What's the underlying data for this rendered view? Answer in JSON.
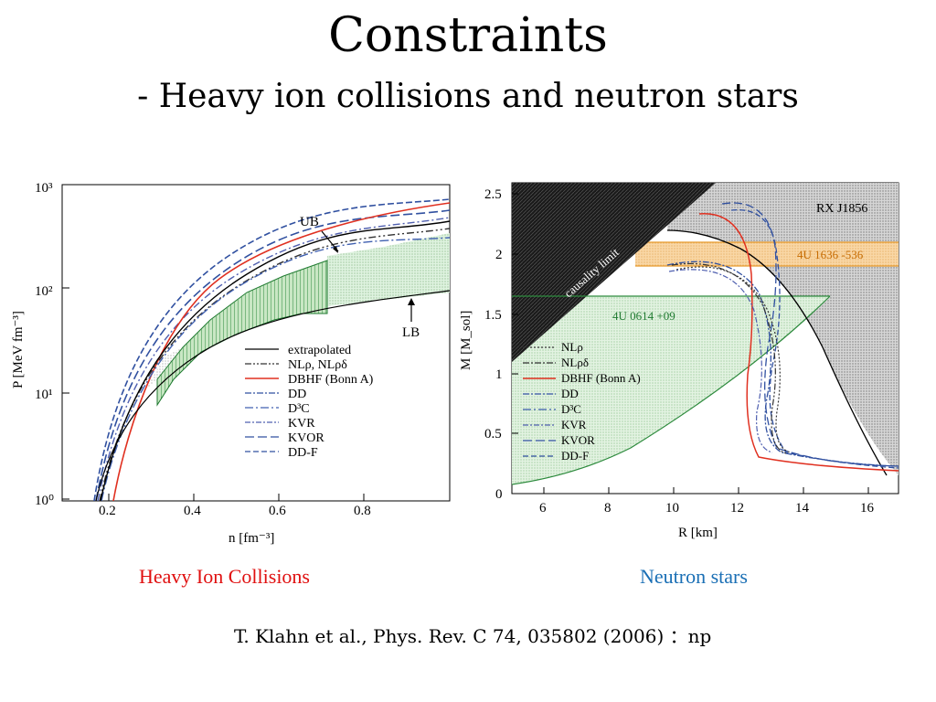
{
  "slide": {
    "title": "Constraints",
    "subtitle": "- Heavy ion collisions and neutron stars",
    "citation": "T. Klahn et al., Phys. Rev. C 74, 035802 (2006) ：np"
  },
  "captions": {
    "left": "Heavy Ion Collisions",
    "left_color": "#e01010",
    "right": "Neutron stars",
    "right_color": "#1a6fb5"
  },
  "chart_data": [
    {
      "type": "line",
      "xlabel": "n [fm⁻³]",
      "ylabel": "P [MeV fm⁻³]",
      "xlim": [
        0.1,
        1.0
      ],
      "ylim": [
        1,
        1000
      ],
      "yscale": "log",
      "x_ticks": [
        "0.2",
        "0.4",
        "0.6",
        "0.8"
      ],
      "y_ticks": [
        "10⁰",
        "10¹",
        "10²",
        "10³"
      ],
      "annotations": [
        "UB",
        "LB"
      ],
      "legend": [
        "extrapolated",
        "NLρ, NLρδ",
        "DBHF (Bonn A)",
        "DD",
        "D³C",
        "KVR",
        "KVOR",
        "DD-F"
      ],
      "series": [
        {
          "name": "DBHF (Bonn A)",
          "color": "#e03020",
          "x": [
            0.2,
            0.3,
            0.4,
            0.5,
            0.6,
            0.7,
            0.8,
            0.9,
            0.98
          ],
          "y": [
            1.2,
            8,
            30,
            80,
            160,
            280,
            400,
            520,
            650
          ]
        },
        {
          "name": "DD",
          "color": "#3050a0",
          "x": [
            0.17,
            0.25,
            0.35,
            0.45,
            0.55,
            0.65,
            0.75,
            0.85,
            0.98
          ],
          "y": [
            1,
            6,
            22,
            60,
            120,
            200,
            290,
            380,
            500
          ]
        },
        {
          "name": "extrapolated",
          "color": "#000000",
          "x": [
            0.18,
            0.3,
            0.4,
            0.5,
            0.6,
            0.7,
            0.8,
            0.9,
            0.98
          ],
          "y": [
            1,
            7,
            22,
            55,
            110,
            180,
            250,
            330,
            420
          ]
        }
      ]
    },
    {
      "type": "line",
      "xlabel": "R [km]",
      "ylabel": "M [M_sol]",
      "xlim": [
        5,
        17
      ],
      "ylim": [
        0,
        2.6
      ],
      "x_ticks": [
        "6",
        "8",
        "10",
        "12",
        "14",
        "16"
      ],
      "y_ticks": [
        "0",
        "0.5",
        "1",
        "1.5",
        "2",
        "2.5"
      ],
      "annotations": [
        "RX J1856",
        "causality limit",
        "4U 1636 -536",
        "4U 0614 +09"
      ],
      "legend": [
        "NLρ",
        "NLρδ",
        "DBHF (Bonn A)",
        "DD",
        "D³C",
        "KVR",
        "KVOR",
        "DD-F"
      ],
      "series": [
        {
          "name": "DBHF (Bonn A)",
          "color": "#e03020",
          "x": [
            11.1,
            11.8,
            12.3,
            12.5,
            12.4,
            12.3,
            12.5,
            13.5,
            15.0,
            16.8
          ],
          "y": [
            2.31,
            2.25,
            1.9,
            1.3,
            0.8,
            0.5,
            0.3,
            0.22,
            0.18,
            0.15
          ]
        },
        {
          "name": "DD",
          "color": "#3050a0",
          "x": [
            9.9,
            11.0,
            12.2,
            12.9,
            13.0,
            12.8,
            13.0,
            14.5,
            16.8
          ],
          "y": [
            1.92,
            1.96,
            1.8,
            1.3,
            0.8,
            0.5,
            0.33,
            0.24,
            0.17
          ]
        }
      ]
    }
  ]
}
